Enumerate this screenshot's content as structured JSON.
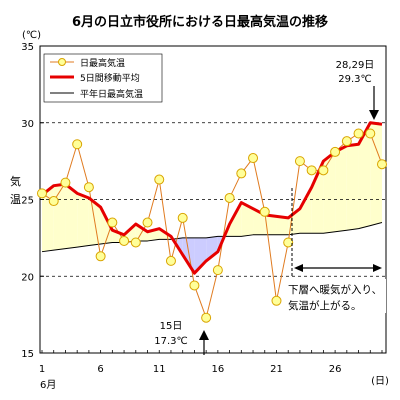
{
  "chart_data": {
    "type": "line",
    "title": "6月の日立市役所における日最高気温の推移",
    "unit_label": "(℃)",
    "ylabel": "気温",
    "xlabel": "(日)",
    "month_label": "6月",
    "ylim": [
      15,
      35
    ],
    "xlim": [
      1,
      30
    ],
    "yticks": [
      15,
      20,
      25,
      30,
      35
    ],
    "xticks": [
      1,
      6,
      11,
      16,
      21,
      26
    ],
    "grid": "dashed horizontal at 20, 25, 30",
    "legend": "top-left",
    "series": [
      {
        "name": "日最高気温",
        "color": "#e07b20",
        "marker_fill": "#ffff99",
        "marker_stroke": "#d9a400",
        "x": [
          1,
          2,
          3,
          4,
          5,
          6,
          7,
          8,
          9,
          10,
          11,
          12,
          13,
          14,
          15,
          16,
          17,
          18,
          19,
          20,
          21,
          22,
          23,
          24,
          25,
          26,
          27,
          28,
          29,
          30
        ],
        "values": [
          25.4,
          24.9,
          26.1,
          28.6,
          25.8,
          21.3,
          23.5,
          22.3,
          22.2,
          23.5,
          26.3,
          21.0,
          23.8,
          19.4,
          17.3,
          20.4,
          25.1,
          26.7,
          27.7,
          24.2,
          18.4,
          22.2,
          27.5,
          26.9,
          26.9,
          28.1,
          28.8,
          29.3,
          29.3,
          27.3
        ]
      },
      {
        "name": "5日間移動平均",
        "color": "#e60000",
        "x": [
          1,
          2,
          3,
          4,
          5,
          6,
          7,
          8,
          9,
          10,
          11,
          12,
          13,
          14,
          15,
          16,
          17,
          18,
          19,
          20,
          21,
          22,
          23,
          24,
          25,
          26,
          27,
          28,
          29,
          30
        ],
        "values": [
          25.3,
          25.9,
          26.0,
          25.4,
          25.1,
          24.5,
          23.0,
          22.7,
          23.4,
          22.9,
          23.1,
          22.6,
          21.4,
          20.2,
          21.0,
          21.6,
          23.4,
          24.8,
          24.4,
          24.0,
          23.9,
          23.8,
          24.4,
          25.8,
          27.5,
          28.1,
          28.5,
          28.6,
          30.0,
          29.9
        ]
      },
      {
        "name": "平年日最高気温",
        "color": "#000000",
        "x": [
          1,
          2,
          3,
          4,
          5,
          6,
          7,
          8,
          9,
          10,
          11,
          12,
          13,
          14,
          15,
          16,
          17,
          18,
          19,
          20,
          21,
          22,
          23,
          24,
          25,
          26,
          27,
          28,
          29,
          30
        ],
        "values": [
          21.6,
          21.7,
          21.8,
          21.9,
          22.0,
          22.1,
          22.2,
          22.2,
          22.3,
          22.3,
          22.4,
          22.4,
          22.5,
          22.5,
          22.5,
          22.6,
          22.6,
          22.6,
          22.7,
          22.7,
          22.7,
          22.7,
          22.8,
          22.8,
          22.8,
          22.9,
          23.0,
          23.1,
          23.3,
          23.5
        ]
      }
    ],
    "annotations": {
      "max_label": "28,29日",
      "max_value": "29.3℃",
      "min_label": "15日",
      "min_value": "17.3℃",
      "note_line1": "下層へ暖気が入り、",
      "note_line2": "気温が上がる。"
    },
    "fill_colors": {
      "above": "#ffffcc",
      "below": "#ccccff"
    }
  }
}
